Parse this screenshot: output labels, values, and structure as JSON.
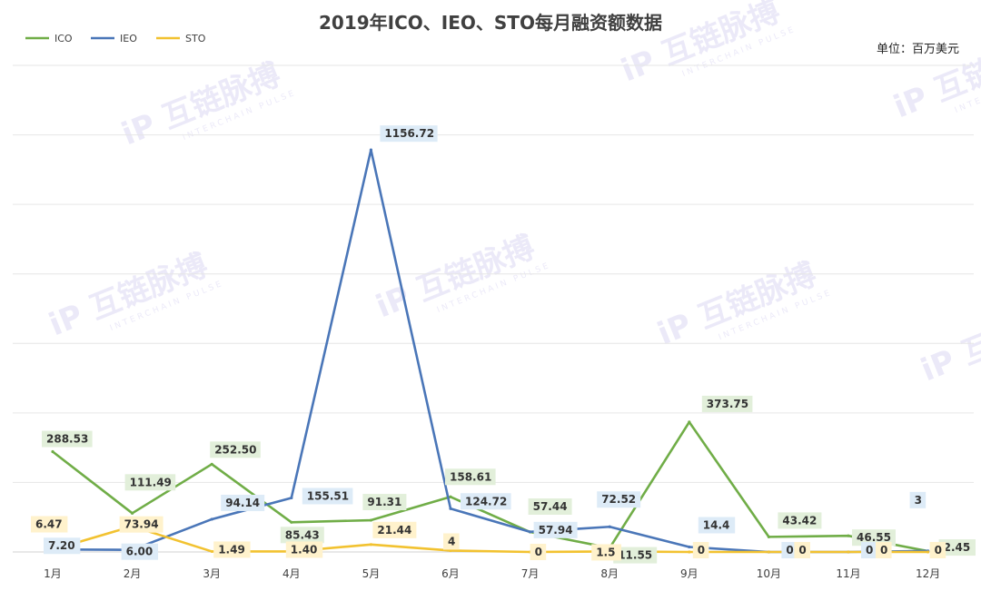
{
  "chart_data": {
    "type": "line",
    "title": "2019年ICO、IEO、STO每月融资额数据",
    "unit_label": "单位：百万美元",
    "watermark": {
      "cn": "互链脉搏",
      "en": "INTERCHAIN PULSE"
    },
    "categories": [
      "1月",
      "2月",
      "3月",
      "4月",
      "5月",
      "6月",
      "7月",
      "8月",
      "9月",
      "10月",
      "11月",
      "12月"
    ],
    "ylim": [
      0,
      1400
    ],
    "grid": true,
    "legend_position": "top-left",
    "series": [
      {
        "name": "ICO",
        "color": "#70AD47",
        "label_bg": "#E2EFDA",
        "values": [
          288.53,
          111.49,
          252.5,
          85.43,
          91.31,
          158.61,
          57.44,
          11.55,
          373.75,
          43.42,
          46.55,
          2.45
        ],
        "labels": [
          "288.53",
          "111.49",
          "252.50",
          "85.43",
          "91.31",
          "158.61",
          "57.44",
          "11.55",
          "373.75",
          "43.42",
          "46.55",
          "2.45"
        ]
      },
      {
        "name": "IEO",
        "color": "#4A76B8",
        "label_bg": "#DDEBF7",
        "values": [
          7.2,
          6.0,
          94.14,
          155.51,
          1156.72,
          124.72,
          57.94,
          72.52,
          14.4,
          0,
          0,
          3
        ],
        "labels": [
          "7.20",
          "6.00",
          "94.14",
          "155.51",
          "1156.72",
          "124.72",
          "57.94",
          "72.52",
          "14.4",
          "0",
          "0",
          "3"
        ]
      },
      {
        "name": "STO",
        "color": "#F2C230",
        "label_bg": "#FFF2CC",
        "values": [
          6.47,
          73.94,
          1.49,
          1.4,
          21.44,
          4,
          0,
          1.5,
          0,
          0,
          0,
          0
        ],
        "labels": [
          "6.47",
          "73.94",
          "1.49",
          "1.40",
          "21.44",
          "4",
          "0",
          "1.5",
          "0",
          "0",
          "0",
          "0"
        ]
      }
    ]
  }
}
